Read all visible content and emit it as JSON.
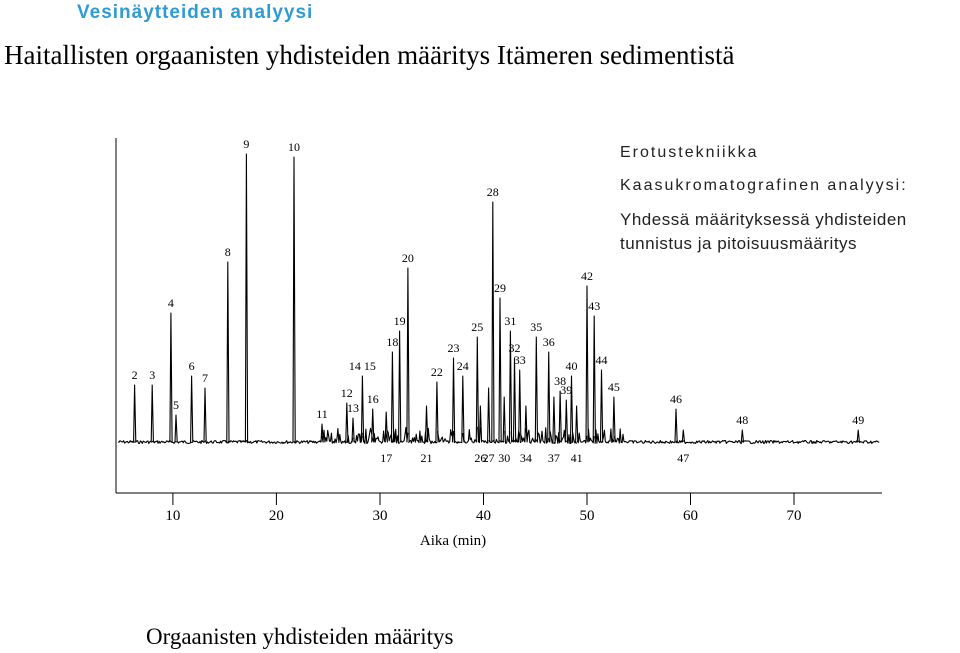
{
  "header": {
    "section_label": "Vesinäytteiden analyysi",
    "title": "Haitallisten orgaanisten yhdisteiden määritys Itämeren sedimentistä"
  },
  "side_panel": {
    "heading": "Erotustekniikka",
    "subheading": "Kaasukromatografinen analyysi:",
    "description": "Yhdessä määrityksessä yhdisteiden tunnistus ja pitoisuusmääritys"
  },
  "footer": {
    "title": "Orgaanisten yhdisteiden määritys"
  },
  "colors": {
    "section_label": "#2e9bd6",
    "trace": "#000000"
  },
  "chart_data": {
    "type": "line",
    "title": "",
    "xlabel": "Aika (min)",
    "ylabel": "",
    "xlim": [
      4.5,
      78.5
    ],
    "ylim": [
      0,
      100
    ],
    "xticks": [
      10,
      20,
      30,
      40,
      50,
      60,
      70
    ],
    "grid": false,
    "legend": "none",
    "peaks": [
      {
        "id": "2",
        "x": 6.3,
        "h": 19
      },
      {
        "id": "3",
        "x": 8.0,
        "h": 19
      },
      {
        "id": "4",
        "x": 9.8,
        "h": 43
      },
      {
        "id": "5",
        "x": 10.3,
        "h": 9
      },
      {
        "id": "6",
        "x": 11.8,
        "h": 22
      },
      {
        "id": "7",
        "x": 13.1,
        "h": 18
      },
      {
        "id": "8",
        "x": 15.3,
        "h": 60
      },
      {
        "id": "9",
        "x": 17.1,
        "h": 96
      },
      {
        "id": "10",
        "x": 21.7,
        "h": 95
      },
      {
        "id": "11",
        "x": 24.4,
        "h": 6
      },
      {
        "id": "12",
        "x": 26.8,
        "h": 13
      },
      {
        "id": "13",
        "x": 27.4,
        "h": 8
      },
      {
        "id": "14 15",
        "x": 28.3,
        "h": 22
      },
      {
        "id": "16",
        "x": 29.3,
        "h": 11
      },
      {
        "id": "17",
        "x": 30.6,
        "h": 10
      },
      {
        "id": "18",
        "x": 31.2,
        "h": 30
      },
      {
        "id": "19",
        "x": 31.9,
        "h": 37
      },
      {
        "id": "20",
        "x": 32.7,
        "h": 58
      },
      {
        "id": "21",
        "x": 34.5,
        "h": 12
      },
      {
        "id": "22",
        "x": 35.5,
        "h": 20
      },
      {
        "id": "23",
        "x": 37.1,
        "h": 28
      },
      {
        "id": "24",
        "x": 38.0,
        "h": 22
      },
      {
        "id": "25",
        "x": 39.4,
        "h": 35
      },
      {
        "id": "26",
        "x": 39.7,
        "h": 12
      },
      {
        "id": "27",
        "x": 40.5,
        "h": 18
      },
      {
        "id": "28",
        "x": 40.9,
        "h": 80
      },
      {
        "id": "29",
        "x": 41.6,
        "h": 48
      },
      {
        "id": "30",
        "x": 42.0,
        "h": 15
      },
      {
        "id": "31",
        "x": 42.6,
        "h": 37
      },
      {
        "id": "32",
        "x": 43.0,
        "h": 28
      },
      {
        "id": "33",
        "x": 43.5,
        "h": 24
      },
      {
        "id": "34",
        "x": 44.1,
        "h": 12
      },
      {
        "id": "35",
        "x": 45.1,
        "h": 35
      },
      {
        "id": "36",
        "x": 46.3,
        "h": 30
      },
      {
        "id": "37",
        "x": 46.8,
        "h": 15
      },
      {
        "id": "38",
        "x": 47.4,
        "h": 17
      },
      {
        "id": "39",
        "x": 48.0,
        "h": 14
      },
      {
        "id": "40",
        "x": 48.5,
        "h": 22
      },
      {
        "id": "41",
        "x": 49.0,
        "h": 12
      },
      {
        "id": "42",
        "x": 50.0,
        "h": 52
      },
      {
        "id": "43",
        "x": 50.7,
        "h": 42
      },
      {
        "id": "44",
        "x": 51.4,
        "h": 24
      },
      {
        "id": "45",
        "x": 52.6,
        "h": 15
      },
      {
        "id": "46",
        "x": 58.6,
        "h": 11
      },
      {
        "id": "47",
        "x": 59.3,
        "h": 4
      },
      {
        "id": "48",
        "x": 65.0,
        "h": 4
      },
      {
        "id": "49",
        "x": 76.2,
        "h": 4
      }
    ]
  }
}
